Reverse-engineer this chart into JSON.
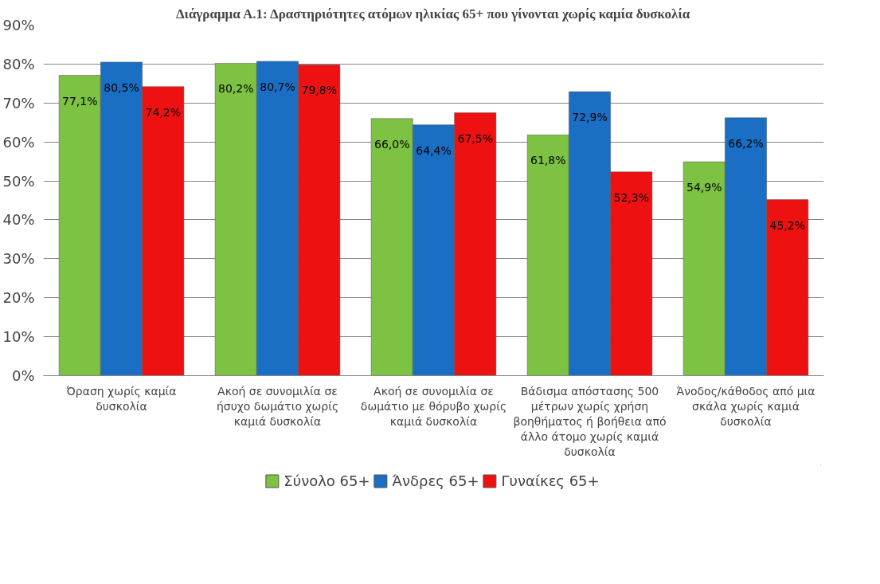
{
  "chart_data": {
    "type": "bar",
    "title": "Διάγραμμα Α.1: Δραστηριότητες ατόμων ηλικίας 65+ που γίνονται χωρίς καμία δυσκολία",
    "categories": [
      "Όραση χωρίς καμία δυσκολία",
      "Ακοή σε συνομιλία σε ήσυχο δωμάτιο χωρίς καμιά δυσκολία",
      "Ακοή σε συνομιλία σε δωμάτιο με θόρυβο χωρίς καμιά δυσκολία",
      "Βάδισμα απόστασης 500 μέτρων χωρίς χρήση βοηθήματος ή βοήθεια από άλλο άτομο χωρίς καμιά δυσκολία",
      "Άνοδος/κάθοδος από μια σκάλα χωρίς καμιά δυσκολία"
    ],
    "series": [
      {
        "name": "Σύνολο 65+",
        "color": "#7dc242",
        "values": [
          77.1,
          80.2,
          66.0,
          61.8,
          54.9
        ],
        "value_labels": [
          "77,1%",
          "80,2%",
          "66,0%",
          "61,8%",
          "54,9%"
        ]
      },
      {
        "name": "Άνδρες 65+",
        "color": "#1a6fc4",
        "values": [
          80.5,
          80.7,
          64.4,
          72.9,
          66.2
        ],
        "value_labels": [
          "80,5%",
          "80,7%",
          "64,4%",
          "72,9%",
          "66,2%"
        ]
      },
      {
        "name": "Γυναίκες 65+",
        "color": "#ee1111",
        "values": [
          74.2,
          79.8,
          67.5,
          52.3,
          45.2
        ],
        "value_labels": [
          "74,2%",
          "79,8%",
          "67,5%",
          "52,3%",
          "45,2%"
        ]
      }
    ],
    "ylim": [
      0,
      90
    ],
    "yticks": [
      {
        "value": 0,
        "label": "0%"
      },
      {
        "value": 10,
        "label": "10%"
      },
      {
        "value": 20,
        "label": "20%"
      },
      {
        "value": 30,
        "label": "30%"
      },
      {
        "value": 40,
        "label": "40%"
      },
      {
        "value": 50,
        "label": "50%"
      },
      {
        "value": 60,
        "label": "60%"
      },
      {
        "value": 70,
        "label": "70%"
      },
      {
        "value": 80,
        "label": "80%"
      },
      {
        "value": 90,
        "label": "90%"
      }
    ],
    "grid": "y",
    "legend": "bottom"
  }
}
